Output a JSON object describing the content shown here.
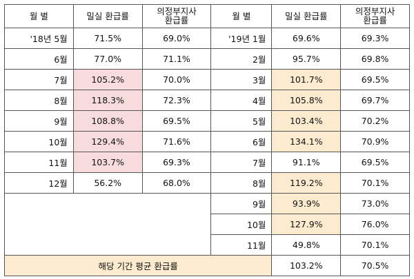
{
  "header": {
    "month_left": "월  별",
    "rate_left": "밀실 환급률",
    "ref_left_line1": "의정부지사",
    "ref_left_line2": "환급률",
    "month_right": "월  별",
    "rate_right": "밀실 환급률",
    "ref_right_line1": "의정부지사",
    "ref_right_line2": "환급률"
  },
  "colors": {
    "highlight_2018": "#f8dcdd",
    "highlight_2019": "#fdebd0",
    "border": "#555555"
  },
  "rows": [
    {
      "lm": "'18년 5월",
      "lr": "71.5%",
      "lf": "69.0%",
      "rm": "'19년 1월",
      "rr": "69.6%",
      "rf": "69.3%"
    },
    {
      "lm": "6월",
      "lr": "77.0%",
      "lf": "71.1%",
      "rm": "2월",
      "rr": "95.7%",
      "rf": "69.8%"
    },
    {
      "lm": "7월",
      "lr": "105.2%",
      "lf": "70.0%",
      "rm": "3월",
      "rr": "101.7%",
      "rf": "69.5%"
    },
    {
      "lm": "8월",
      "lr": "118.3%",
      "lf": "72.3%",
      "rm": "4월",
      "rr": "105.8%",
      "rf": "69.7%"
    },
    {
      "lm": "9월",
      "lr": "108.8%",
      "lf": "69.5%",
      "rm": "5월",
      "rr": "103.4%",
      "rf": "70.2%"
    },
    {
      "lm": "10월",
      "lr": "129.4%",
      "lf": "71.6%",
      "rm": "6월",
      "rr": "134.1%",
      "rf": "70.9%"
    },
    {
      "lm": "11월",
      "lr": "103.7%",
      "lf": "69.3%",
      "rm": "7월",
      "rr": "91.1%",
      "rf": "69.5%"
    },
    {
      "lm": "12월",
      "lr": "56.2%",
      "lf": "68.0%",
      "rm": "8월",
      "rr": "119.2%",
      "rf": "70.1%"
    },
    {
      "rm": "9월",
      "rr": "93.9%",
      "rf": "73.0%"
    },
    {
      "rm": "10월",
      "rr": "127.9%",
      "rf": "76.0%"
    },
    {
      "rm": "11월",
      "rr": "49.8%",
      "rf": "70.1%"
    }
  ],
  "footer": {
    "label": "해당 기간 평균 환급률",
    "avg_rate": "103.2%",
    "avg_ref": "70.5%"
  }
}
